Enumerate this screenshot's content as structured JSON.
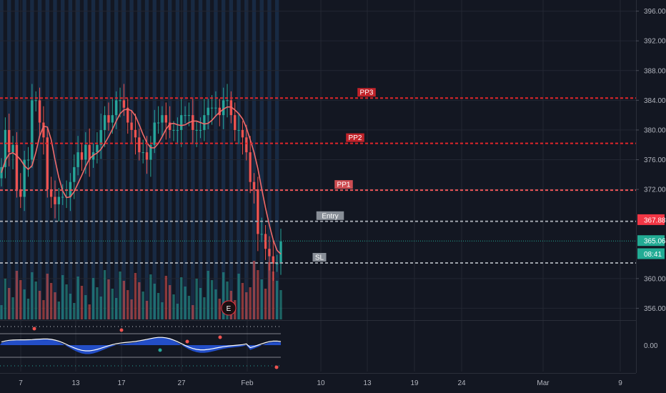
{
  "chart_data": {
    "type": "candlestick",
    "price_axis": {
      "ticks": [
        "396.00",
        "392.00",
        "388.00",
        "384.00",
        "380.00",
        "376.00",
        "372.00",
        "360.00",
        "356.00"
      ],
      "ylim": [
        354.5,
        397.5
      ]
    },
    "oscillator_axis": {
      "ticks": [
        "0.00"
      ]
    },
    "x_axis": {
      "ticks": [
        "7",
        "13",
        "17",
        "27",
        "Feb",
        "10",
        "13",
        "19",
        "24",
        "Mar",
        "9"
      ]
    },
    "levels": [
      {
        "label": "PP3",
        "price": 384.3,
        "color": "#e0262b"
      },
      {
        "label": "PP2",
        "price": 378.2,
        "color": "#e0262b"
      },
      {
        "label": "PP1",
        "price": 371.9,
        "color": "#f0575a"
      },
      {
        "label": "Entry",
        "price": 367.7,
        "color": "#9ea3ab"
      },
      {
        "label": "SL",
        "price": 362.1,
        "color": "#9ea3ab"
      }
    ],
    "price_tags": [
      {
        "value": "367.88",
        "color": "#f23645",
        "price": 367.88
      },
      {
        "value": "365.06",
        "color": "#22ab94",
        "price": 365.06
      },
      {
        "value": "08:41",
        "color": "#22ab94",
        "price": 363.3
      }
    ],
    "earnings_marker": "E",
    "closes": [
      375,
      380,
      377,
      378,
      372,
      371,
      376,
      376,
      384,
      384,
      381,
      379,
      372,
      371,
      370,
      371,
      371,
      371,
      373,
      375,
      377,
      376,
      378,
      376,
      377,
      378,
      380,
      382,
      381,
      382,
      384,
      384,
      383,
      381,
      380,
      379,
      377,
      377,
      376,
      378,
      381,
      381,
      382,
      381,
      380,
      380,
      380,
      382,
      382,
      382,
      380,
      380,
      380,
      382,
      383,
      383,
      383,
      382,
      384,
      384,
      382,
      380,
      380,
      379,
      377,
      373,
      372,
      366,
      366,
      364,
      363,
      362,
      362,
      365
    ]
  },
  "ui": {
    "colors": {
      "up": "#26a69a",
      "down": "#ef5350",
      "bg": "#131722",
      "grid": "#232733",
      "text": "#b2b5be"
    }
  }
}
